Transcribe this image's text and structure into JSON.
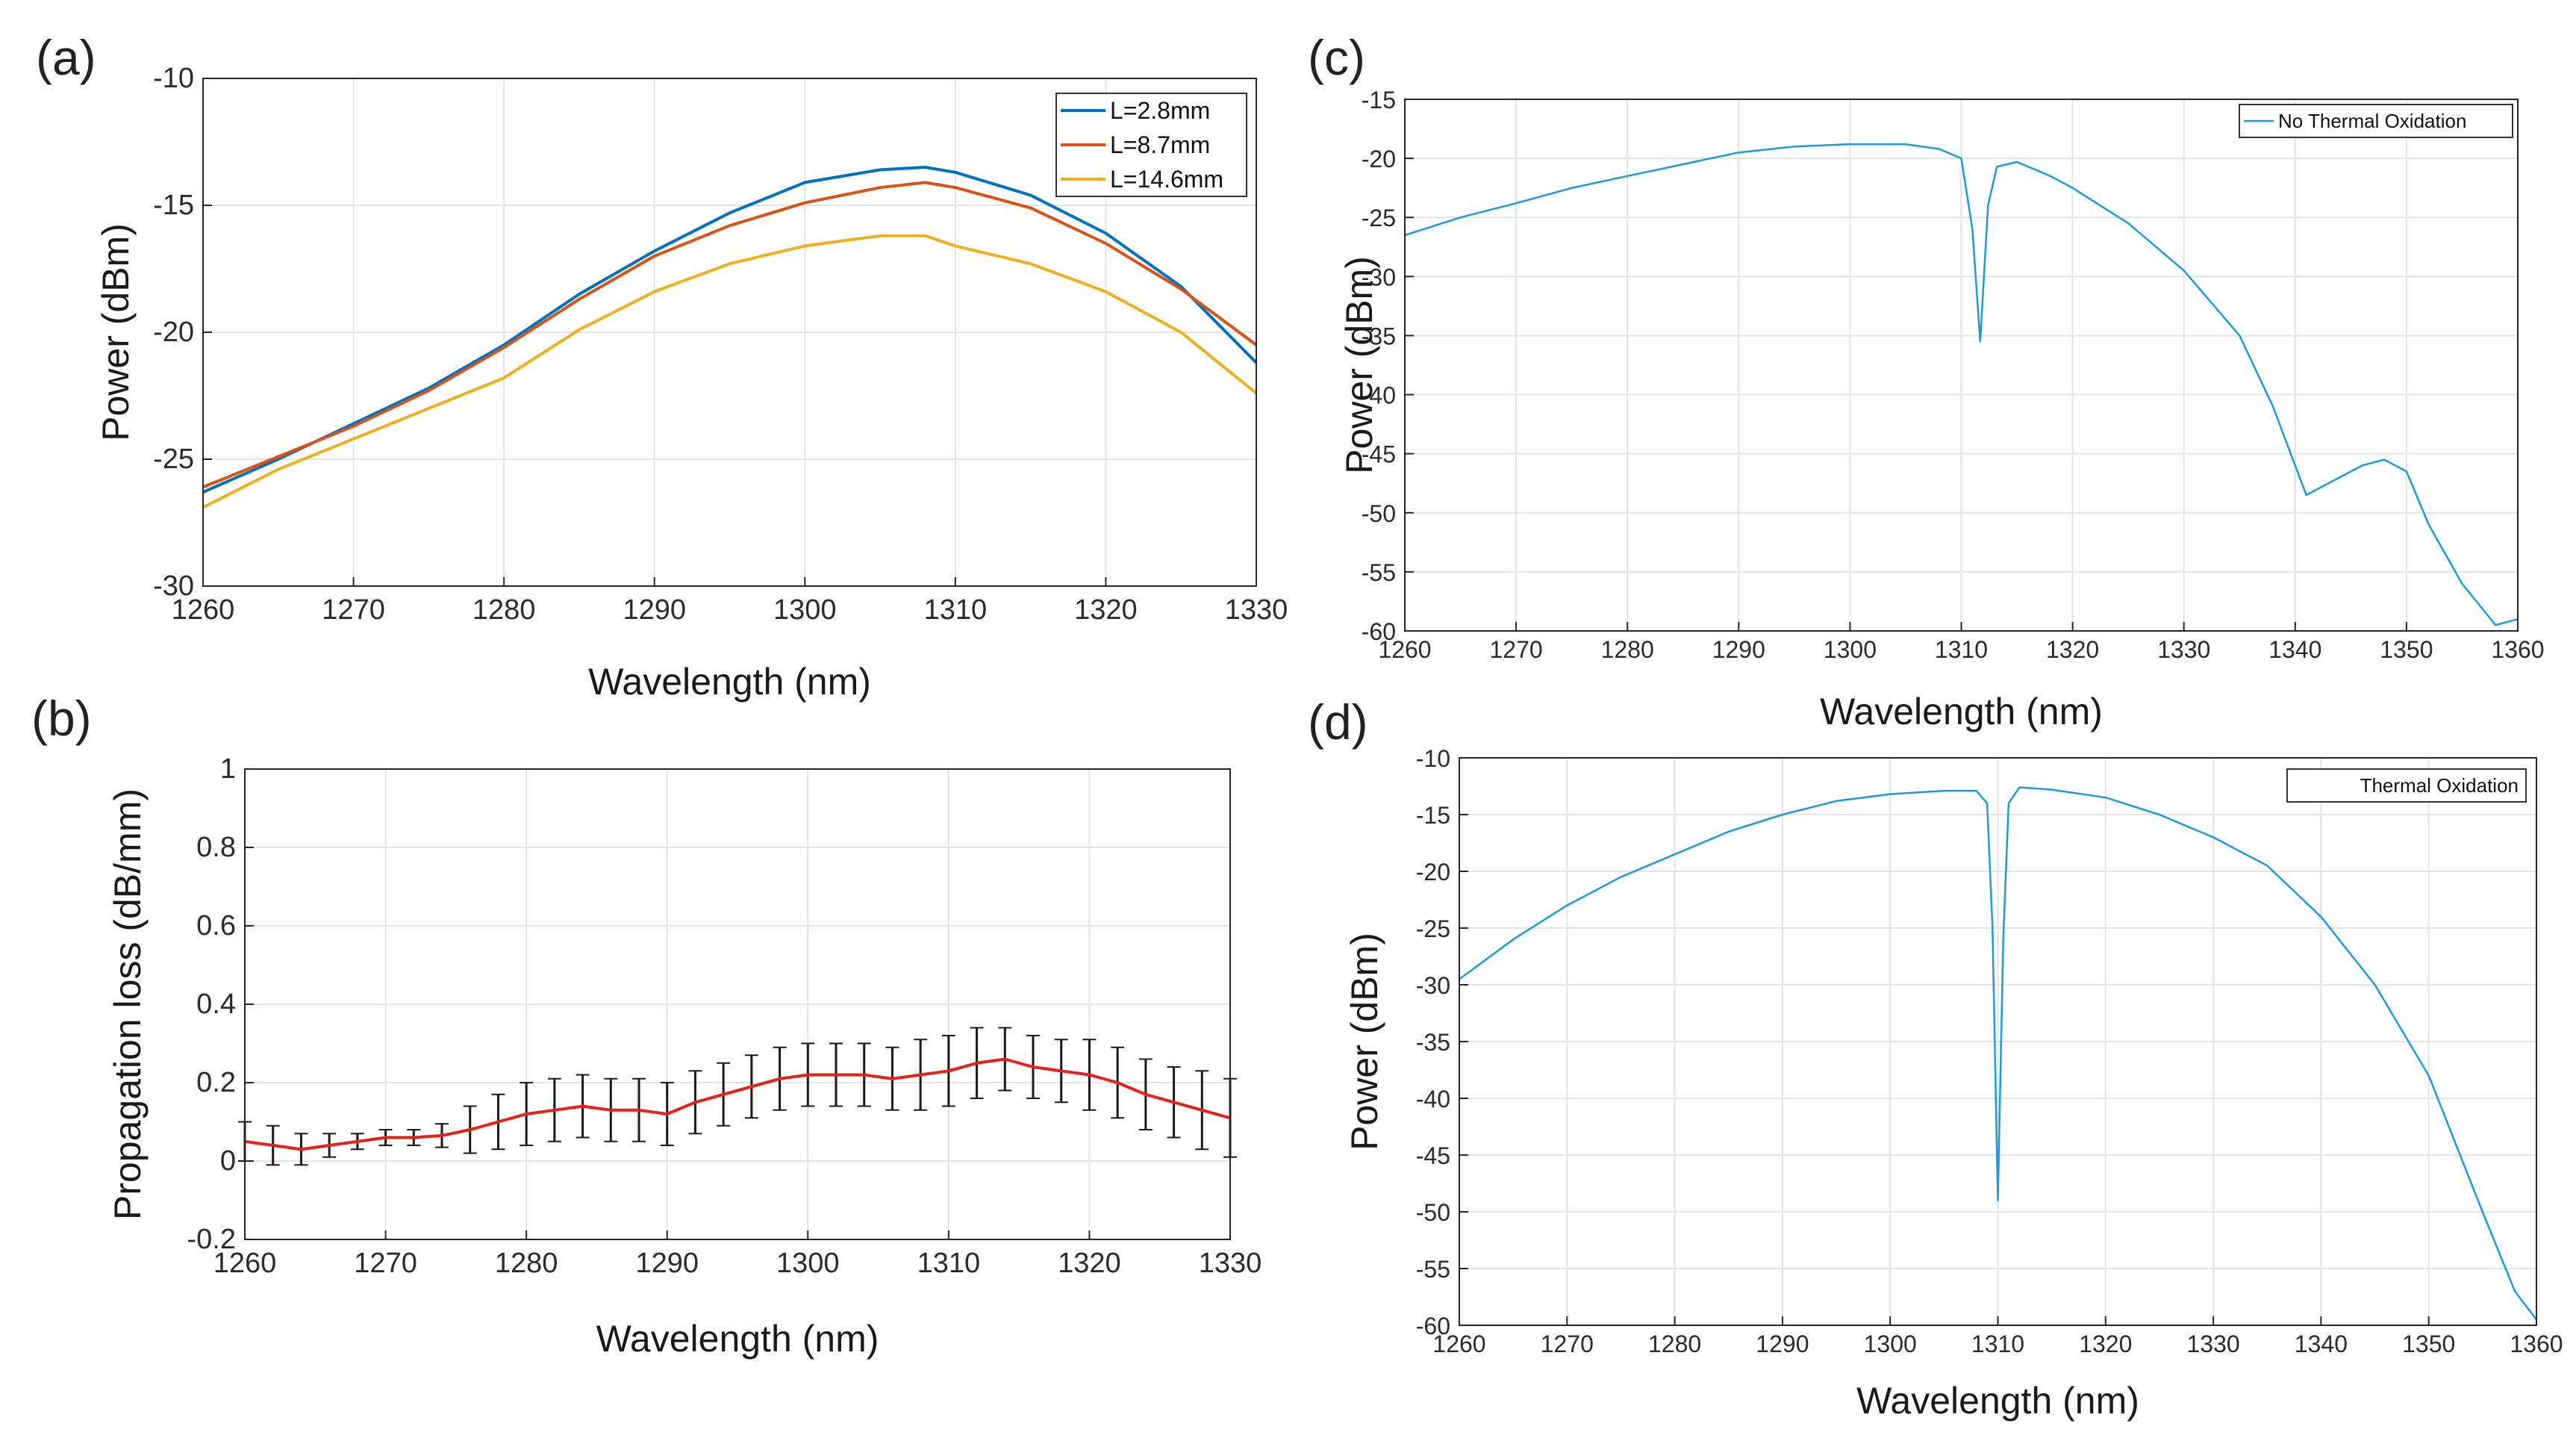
{
  "chart_data": [
    {
      "id": "a",
      "panel_label": "(a)",
      "type": "line",
      "xlabel": "Wavelength (nm)",
      "ylabel": "Power (dBm)",
      "xlim": [
        1260,
        1330
      ],
      "ylim": [
        -30,
        -10
      ],
      "xticks": [
        1260,
        1270,
        1280,
        1290,
        1300,
        1310,
        1320,
        1330
      ],
      "yticks": [
        -30,
        -25,
        -20,
        -15,
        -10
      ],
      "grid": true,
      "legend_position": "top-right",
      "series": [
        {
          "name": "L=2.8mm",
          "color": "#0072BD",
          "x": [
            1260,
            1265,
            1270,
            1275,
            1280,
            1285,
            1290,
            1295,
            1300,
            1305,
            1308,
            1310,
            1315,
            1320,
            1325,
            1330
          ],
          "y": [
            -26.3,
            -25.0,
            -23.6,
            -22.2,
            -20.5,
            -18.5,
            -16.8,
            -15.3,
            -14.1,
            -13.6,
            -13.5,
            -13.7,
            -14.6,
            -16.1,
            -18.2,
            -21.2
          ]
        },
        {
          "name": "L=8.7mm",
          "color": "#D95319",
          "x": [
            1260,
            1265,
            1270,
            1275,
            1280,
            1285,
            1290,
            1295,
            1300,
            1305,
            1308,
            1310,
            1315,
            1320,
            1325,
            1330
          ],
          "y": [
            -26.1,
            -24.9,
            -23.7,
            -22.3,
            -20.6,
            -18.7,
            -17.0,
            -15.8,
            -14.9,
            -14.3,
            -14.1,
            -14.3,
            -15.1,
            -16.5,
            -18.3,
            -20.5
          ]
        },
        {
          "name": "L=14.6mm",
          "color": "#EDB120",
          "x": [
            1260,
            1265,
            1270,
            1275,
            1280,
            1285,
            1290,
            1295,
            1300,
            1305,
            1308,
            1310,
            1315,
            1320,
            1325,
            1330
          ],
          "y": [
            -26.9,
            -25.4,
            -24.2,
            -23.0,
            -21.8,
            -19.9,
            -18.4,
            -17.3,
            -16.6,
            -16.2,
            -16.2,
            -16.6,
            -17.3,
            -18.4,
            -20.0,
            -22.4
          ]
        }
      ]
    },
    {
      "id": "b",
      "panel_label": "(b)",
      "type": "line",
      "xlabel": "Wavelength (nm)",
      "ylabel": "Propagation loss (dB/mm)",
      "xlim": [
        1260,
        1330
      ],
      "ylim": [
        -0.2,
        1
      ],
      "xticks": [
        1260,
        1270,
        1280,
        1290,
        1300,
        1310,
        1320,
        1330
      ],
      "yticks": [
        -0.2,
        0,
        0.2,
        0.4,
        0.6,
        0.8,
        1
      ],
      "grid": true,
      "series": [
        {
          "name": "Propagation loss",
          "color": "#E8201C",
          "errorbar_color": "#1a1a1a",
          "x": [
            1260,
            1262,
            1264,
            1266,
            1268,
            1270,
            1272,
            1274,
            1276,
            1278,
            1280,
            1282,
            1284,
            1286,
            1288,
            1290,
            1292,
            1294,
            1296,
            1298,
            1300,
            1302,
            1304,
            1306,
            1308,
            1310,
            1312,
            1314,
            1316,
            1318,
            1320,
            1322,
            1324,
            1326,
            1328,
            1330
          ],
          "y": [
            0.05,
            0.04,
            0.03,
            0.04,
            0.05,
            0.06,
            0.06,
            0.065,
            0.08,
            0.1,
            0.12,
            0.13,
            0.14,
            0.13,
            0.13,
            0.12,
            0.15,
            0.17,
            0.19,
            0.21,
            0.22,
            0.22,
            0.22,
            0.21,
            0.22,
            0.23,
            0.25,
            0.26,
            0.24,
            0.23,
            0.22,
            0.2,
            0.17,
            0.15,
            0.13,
            0.11
          ],
          "err": [
            0.05,
            0.05,
            0.04,
            0.03,
            0.02,
            0.02,
            0.02,
            0.03,
            0.06,
            0.07,
            0.08,
            0.08,
            0.08,
            0.08,
            0.08,
            0.08,
            0.08,
            0.08,
            0.08,
            0.08,
            0.08,
            0.08,
            0.08,
            0.08,
            0.09,
            0.09,
            0.09,
            0.08,
            0.08,
            0.08,
            0.09,
            0.09,
            0.09,
            0.09,
            0.1,
            0.1
          ]
        }
      ]
    },
    {
      "id": "c",
      "panel_label": "(c)",
      "type": "line",
      "xlabel": "Wavelength (nm)",
      "ylabel": "Power (dBm)",
      "xlim": [
        1260,
        1360
      ],
      "ylim": [
        -60,
        -15
      ],
      "xticks": [
        1260,
        1270,
        1280,
        1290,
        1300,
        1310,
        1320,
        1330,
        1340,
        1350,
        1360
      ],
      "yticks": [
        -60,
        -55,
        -50,
        -45,
        -40,
        -35,
        -30,
        -25,
        -20,
        -15
      ],
      "grid": true,
      "legend_position": "top-right",
      "series": [
        {
          "name": "No Thermal Oxidation",
          "color": "#1E9BD7",
          "x": [
            1260,
            1265,
            1270,
            1275,
            1280,
            1285,
            1290,
            1295,
            1300,
            1305,
            1308,
            1310,
            1311,
            1311.7,
            1312.4,
            1313.2,
            1315,
            1318,
            1320,
            1325,
            1330,
            1335,
            1338,
            1341,
            1343,
            1346,
            1348,
            1350,
            1352,
            1355,
            1358,
            1360
          ],
          "y": [
            -26.5,
            -25,
            -23.8,
            -22.5,
            -21.5,
            -20.5,
            -19.5,
            -19,
            -18.8,
            -18.8,
            -19.2,
            -20,
            -26,
            -35.5,
            -24,
            -20.7,
            -20.3,
            -21.5,
            -22.5,
            -25.5,
            -29.5,
            -35,
            -41,
            -48.5,
            -47.5,
            -46,
            -45.5,
            -46.5,
            -51,
            -56,
            -59.5,
            -59
          ]
        }
      ]
    },
    {
      "id": "d",
      "panel_label": "(d)",
      "type": "line",
      "xlabel": "Wavelength (nm)",
      "ylabel": "Power (dBm)",
      "xlim": [
        1260,
        1360
      ],
      "ylim": [
        -60,
        -10
      ],
      "xticks": [
        1260,
        1270,
        1280,
        1290,
        1300,
        1310,
        1320,
        1330,
        1340,
        1350,
        1360
      ],
      "yticks": [
        -60,
        -55,
        -50,
        -45,
        -40,
        -35,
        -30,
        -25,
        -20,
        -15,
        -10
      ],
      "grid": true,
      "legend_position": "top-right",
      "series": [
        {
          "name": "Thermal Oxidation",
          "color": "#1E9BD7",
          "x": [
            1260,
            1265,
            1270,
            1275,
            1280,
            1285,
            1290,
            1295,
            1300,
            1305,
            1308,
            1309,
            1309.5,
            1310,
            1310.5,
            1311,
            1312,
            1315,
            1320,
            1325,
            1330,
            1335,
            1340,
            1345,
            1350,
            1355,
            1358,
            1360
          ],
          "y": [
            -29.5,
            -26,
            -23,
            -20.5,
            -18.5,
            -16.5,
            -15,
            -13.8,
            -13.2,
            -12.9,
            -12.9,
            -14,
            -25,
            -49,
            -26,
            -14,
            -12.6,
            -12.8,
            -13.5,
            -15,
            -17,
            -19.5,
            -24,
            -30,
            -38,
            -50,
            -57,
            -59.5
          ]
        }
      ]
    }
  ]
}
